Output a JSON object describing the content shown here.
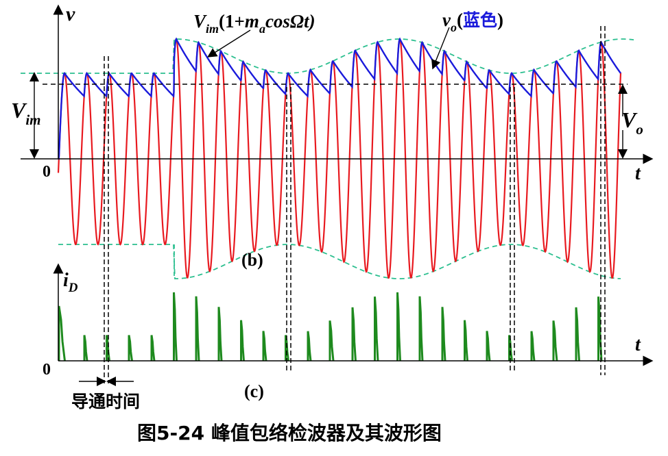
{
  "labels": {
    "v_axis": "v",
    "t_axis_top": "t",
    "t_axis_bottom": "t",
    "origin_top": "0",
    "origin_bottom": "0",
    "vim_left_main": "V",
    "vim_left_sub": "im",
    "vo_right_main": "V",
    "vo_right_sub": "o",
    "envelope_V": "V",
    "envelope_sub": "im",
    "envelope_open": "(1+",
    "envelope_m": "m",
    "envelope_a": "a",
    "envelope_rest": "cosΩt)",
    "vo_main": "v",
    "vo_sub": "o",
    "vo_paren_open": "(",
    "vo_blue_word": "蓝色",
    "vo_paren_close": ")",
    "id_main": "i",
    "id_sub": "D",
    "panel_b": "(b)",
    "panel_c": "(c)",
    "conduction_time": "导通时间",
    "caption": "图5-24 峰值包络检波器及其波形图"
  },
  "colors": {
    "carrier": "#e8191f",
    "output": "#1a1adb",
    "envelope": "#2bbf8f",
    "current": "#1e8a1e",
    "axis": "#000000",
    "guide": "#000000",
    "blue_text": "#1a1adb"
  }
}
